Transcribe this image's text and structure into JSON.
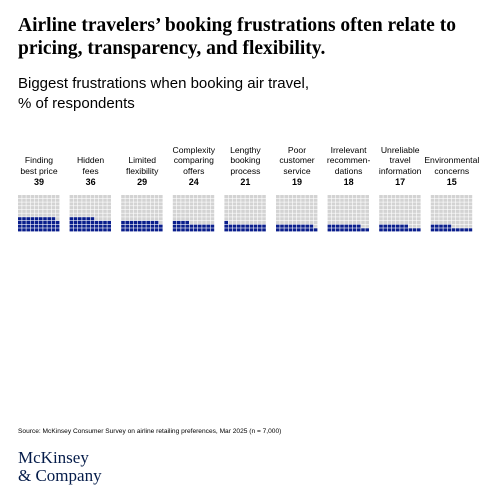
{
  "chart_data": {
    "type": "waffle",
    "title": "Airline travelers’ booking frustrations often relate to pricing, transparency, and flexibility.",
    "subtitle": "Biggest frustrations when booking air travel,",
    "unit": "% of respondents",
    "categories": [
      "Finding\nbest price",
      "Hidden\nfees",
      "Limited\nflexibility",
      "Complexity\ncomparing\noffers",
      "Lengthy\nbooking\nprocess",
      "Poor\ncustomer\nservice",
      "Irrelevant\nrecommen-\ndations",
      "Unreliable\ntravel\ninformation",
      "Environmental\nconcerns"
    ],
    "values": [
      39,
      36,
      29,
      24,
      21,
      19,
      18,
      17,
      15
    ],
    "color": "#0a1e8c",
    "empty_color": "#d3d3d3",
    "source": "Source: McKinsey Consumer Survey on airline retailing preferences, Mar 2025 (n = 7,000)",
    "brand": [
      "McKinsey",
      "& Company"
    ]
  }
}
